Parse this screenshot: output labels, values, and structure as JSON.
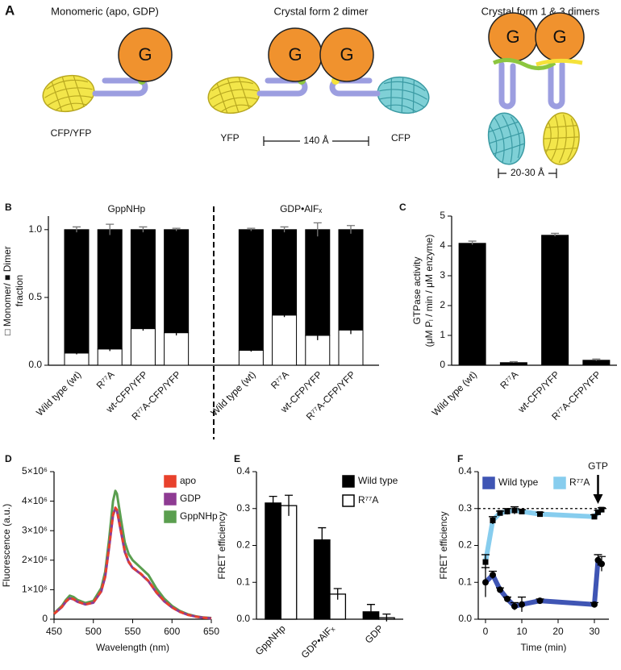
{
  "diagram": {
    "panel": "A",
    "titles": [
      "Monomeric (apo, GDP)",
      "Crystal form 2 dimer",
      "Crystal form 1 & 3 dimers"
    ],
    "g_labels": [
      "G",
      "G",
      "G",
      "G",
      "G"
    ],
    "protein_labels": [
      "CFP/YFP",
      "YFP",
      "CFP"
    ],
    "distances": [
      "140 Å",
      "20-30 Å"
    ]
  },
  "chart_data": [
    {
      "panel": "B",
      "type": "stacked_bar",
      "group_labels": [
        "GppNHp",
        "GDP•AlFₓ"
      ],
      "categories": [
        "Wild type (wt)",
        "R⁷⁷A",
        "wt-CFP/YFP",
        "R⁷⁷A-CFP/YFP",
        "Wild type (wt)",
        "R⁷⁷A",
        "wt-CFP/YFP",
        "R⁷⁷A-CFP/YFP"
      ],
      "series": [
        {
          "color": "#ffffff",
          "values": [
            0.09,
            0.12,
            0.27,
            0.24,
            0.11,
            0.37,
            0.22,
            0.26
          ],
          "errors": [
            0.01,
            0.015,
            0.015,
            0.02,
            0.01,
            0.015,
            0.035,
            0.03
          ]
        },
        {
          "color": "#000000",
          "values": [
            0.91,
            0.88,
            0.73,
            0.76,
            0.89,
            0.63,
            0.78,
            0.74
          ],
          "errors": [
            0.02,
            0.04,
            0.02,
            0.01,
            0.01,
            0.02,
            0.05,
            0.03
          ]
        }
      ],
      "ylabel": [
        "□ Monomer/ ■ Dimer",
        "fraction"
      ],
      "ylim": [
        0,
        1.1
      ],
      "yticks": [
        {
          "value": 0,
          "label": "0.0"
        },
        {
          "value": 0.5,
          "label": "0.5"
        },
        {
          "value": 1,
          "label": "1.0"
        }
      ]
    },
    {
      "panel": "C",
      "type": "bar",
      "categories": [
        "Wild type (wt)",
        "R⁷⁷A",
        "wt-CFP/YFP",
        "R⁷⁷A-CFP/YFP"
      ],
      "values": [
        4.1,
        0.1,
        4.37,
        0.18
      ],
      "errors": [
        0.06,
        0.02,
        0.05,
        0.03
      ],
      "color": "#000000",
      "ylabel": [
        "GTPase activity",
        "(μM Pᵢ / min / μM enzyme)"
      ],
      "ylim": [
        0,
        5
      ],
      "yticks": [
        0,
        1,
        2,
        3,
        4,
        5
      ]
    },
    {
      "panel": "D",
      "type": "line",
      "x": [
        450,
        460,
        465,
        470,
        475,
        480,
        490,
        500,
        510,
        515,
        520,
        525,
        528,
        530,
        535,
        540,
        545,
        550,
        560,
        570,
        580,
        590,
        600,
        610,
        620,
        630,
        640,
        650
      ],
      "series": [
        {
          "name": "apo",
          "color": "#e8412c",
          "style": "dashed",
          "values": [
            180000,
            420000,
            600000,
            720000,
            680000,
            600000,
            500000,
            570000,
            950000,
            1450000,
            2450000,
            3550000,
            3780000,
            3700000,
            3000000,
            2300000,
            1950000,
            1750000,
            1550000,
            1300000,
            920000,
            620000,
            400000,
            250000,
            150000,
            90000,
            50000,
            30000
          ]
        },
        {
          "name": "GDP",
          "color": "#8e3b93",
          "values": [
            180000,
            410000,
            590000,
            710000,
            670000,
            590000,
            500000,
            560000,
            940000,
            1430000,
            2420000,
            3520000,
            3750000,
            3680000,
            2980000,
            2280000,
            1930000,
            1740000,
            1540000,
            1290000,
            910000,
            610000,
            400000,
            250000,
            150000,
            90000,
            50000,
            30000
          ]
        },
        {
          "name": "GppNHp",
          "color": "#5a9e4f",
          "values": [
            200000,
            450000,
            650000,
            800000,
            750000,
            650000,
            550000,
            620000,
            1050000,
            1600000,
            2700000,
            4000000,
            4350000,
            4250000,
            3400000,
            2600000,
            2200000,
            2000000,
            1750000,
            1500000,
            1050000,
            700000,
            450000,
            280000,
            170000,
            100000,
            60000,
            40000
          ]
        }
      ],
      "xlabel": "Wavelength (nm)",
      "ylabel": "Fluorescence (a.u.)",
      "xlim": [
        450,
        650
      ],
      "xticks": [
        450,
        500,
        550,
        600,
        650
      ],
      "ylim": [
        0,
        5000000
      ],
      "yticks": [
        0,
        {
          "value": 1000000,
          "label": "1×10⁶"
        },
        {
          "value": 2000000,
          "label": "2×10⁶"
        },
        {
          "value": 3000000,
          "label": "3×10⁶"
        },
        {
          "value": 4000000,
          "label": "4×10⁶"
        },
        {
          "value": 5000000,
          "label": "5×10⁶"
        }
      ],
      "legend": "upper right"
    },
    {
      "panel": "E",
      "type": "grouped_bar",
      "categories": [
        "GppNHp",
        "GDP•AlFₓ",
        "GDP"
      ],
      "series": [
        {
          "name": "Wild type",
          "color": "#000000",
          "values": [
            0.315,
            0.215,
            0.02
          ],
          "errors": [
            0.018,
            0.033,
            0.02
          ]
        },
        {
          "name": "R⁷⁷A",
          "color": "#ffffff",
          "values": [
            0.308,
            0.068,
            0.004
          ],
          "errors": [
            0.028,
            0.015,
            0.01
          ]
        }
      ],
      "ylabel": "FRET efficiency",
      "ylim": [
        0,
        0.4
      ],
      "yticks": [
        {
          "value": 0,
          "label": "0.0"
        },
        {
          "value": 0.1,
          "label": "0.1"
        },
        {
          "value": 0.2,
          "label": "0.2"
        },
        {
          "value": 0.3,
          "label": "0.3"
        },
        {
          "value": 0.4,
          "label": "0.4"
        }
      ],
      "legend": "upper right"
    },
    {
      "panel": "F",
      "type": "line",
      "x": [
        0,
        2,
        4,
        6,
        8,
        10,
        15,
        30,
        31,
        32
      ],
      "series": [
        {
          "name": "Wild type",
          "color": "#3f55b4",
          "marker": "circle",
          "values": [
            0.1,
            0.12,
            0.08,
            0.055,
            0.035,
            0.04,
            0.05,
            0.04,
            0.16,
            0.15
          ],
          "errors": [
            0.04,
            0.01,
            0.005,
            0.005,
            0.01,
            0.02,
            0.005,
            0.005,
            0.015,
            0.02
          ]
        },
        {
          "name": "R⁷⁷A",
          "color": "#87cdee",
          "marker": "square",
          "values": [
            0.155,
            0.268,
            0.288,
            0.292,
            0.295,
            0.292,
            0.285,
            0.278,
            0.29,
            0.297
          ],
          "errors": [
            0.02,
            0.01,
            0.005,
            0.008,
            0.01,
            0.005,
            0.005,
            0.005,
            0.005,
            0.005
          ]
        }
      ],
      "xlabel": "Time (min)",
      "ylabel": "FRET efficiency",
      "xlim": [
        -2,
        34
      ],
      "xticks": [
        0,
        10,
        20,
        30
      ],
      "ylim": [
        0,
        0.4
      ],
      "yticks": [
        {
          "value": 0,
          "label": "0.0"
        },
        {
          "value": 0.1,
          "label": "0.1"
        },
        {
          "value": 0.2,
          "label": "0.2"
        },
        {
          "value": 0.3,
          "label": "0.3"
        },
        {
          "value": 0.4,
          "label": "0.4"
        }
      ],
      "reference_line": 0.3,
      "annotation": {
        "text": "GTP",
        "x": 31
      },
      "legend": "upper left"
    }
  ]
}
